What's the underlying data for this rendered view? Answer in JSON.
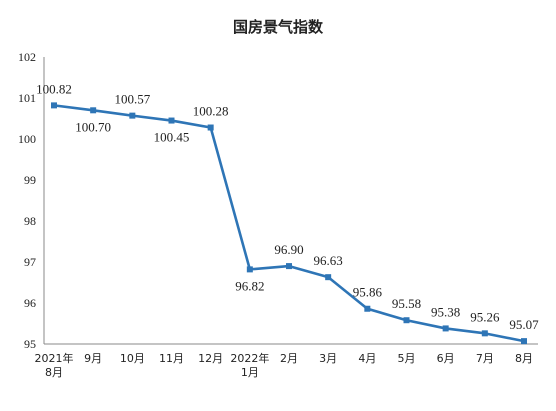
{
  "chart_data": {
    "type": "line",
    "title": "国房景气指数",
    "xlabel": "",
    "ylabel": "",
    "ylim": [
      95,
      102
    ],
    "yticks": [
      95,
      96,
      97,
      98,
      99,
      100,
      101,
      102
    ],
    "categories": [
      [
        "2021年",
        "8月"
      ],
      [
        "9月"
      ],
      [
        "10月"
      ],
      [
        "11月"
      ],
      [
        "12月"
      ],
      [
        "2022年",
        "1月"
      ],
      [
        "2月"
      ],
      [
        "3月"
      ],
      [
        "4月"
      ],
      [
        "5月"
      ],
      [
        "6月"
      ],
      [
        "7月"
      ],
      [
        "8月"
      ]
    ],
    "series": [
      {
        "values": [
          100.82,
          100.7,
          100.57,
          100.45,
          100.28,
          96.82,
          96.9,
          96.63,
          95.86,
          95.58,
          95.38,
          95.26,
          95.07
        ],
        "labels": [
          "100.82",
          "100.70",
          "100.57",
          "100.45",
          "100.28",
          "96.82",
          "96.90",
          "96.63",
          "95.86",
          "95.58",
          "95.38",
          "95.26",
          "95.07"
        ]
      }
    ],
    "colors": {
      "line": "#2E75B6",
      "axis": "#888888"
    },
    "grid": false,
    "legend": "none"
  }
}
